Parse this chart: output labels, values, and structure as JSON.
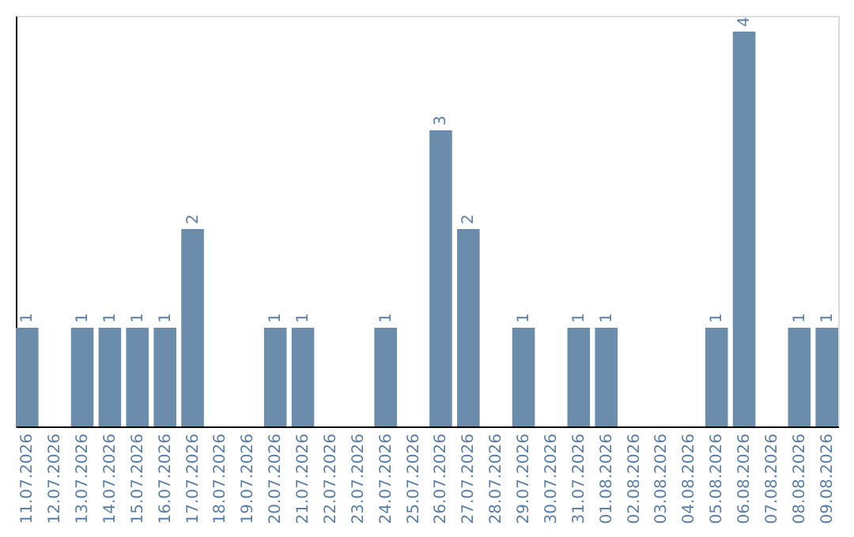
{
  "chart_data": {
    "type": "bar",
    "categories": [
      "11.07.2026",
      "12.07.2026",
      "13.07.2026",
      "14.07.2026",
      "15.07.2026",
      "16.07.2026",
      "17.07.2026",
      "18.07.2026",
      "19.07.2026",
      "20.07.2026",
      "21.07.2026",
      "22.07.2026",
      "23.07.2026",
      "24.07.2026",
      "25.07.2026",
      "26.07.2026",
      "27.07.2026",
      "28.07.2026",
      "29.07.2026",
      "30.07.2026",
      "31.07.2026",
      "01.08.2026",
      "02.08.2026",
      "03.08.2026",
      "04.08.2026",
      "05.08.2026",
      "06.08.2026",
      "07.08.2026",
      "08.08.2026",
      "09.08.2026"
    ],
    "values": [
      1,
      0,
      1,
      1,
      1,
      1,
      2,
      0,
      0,
      1,
      1,
      0,
      0,
      1,
      0,
      3,
      2,
      0,
      1,
      0,
      1,
      1,
      0,
      0,
      0,
      1,
      4,
      0,
      1,
      1
    ],
    "value_labels": [
      "1",
      null,
      "1",
      "1",
      "1",
      "1",
      "2",
      null,
      null,
      "1",
      "1",
      null,
      null,
      "1",
      null,
      "3",
      "2",
      null,
      "1",
      null,
      "1",
      "1",
      null,
      null,
      null,
      "1",
      "4",
      null,
      "1",
      "1"
    ],
    "color": "#6b8cab",
    "ylim": [
      0,
      4.16
    ],
    "tick_labels": "x"
  }
}
